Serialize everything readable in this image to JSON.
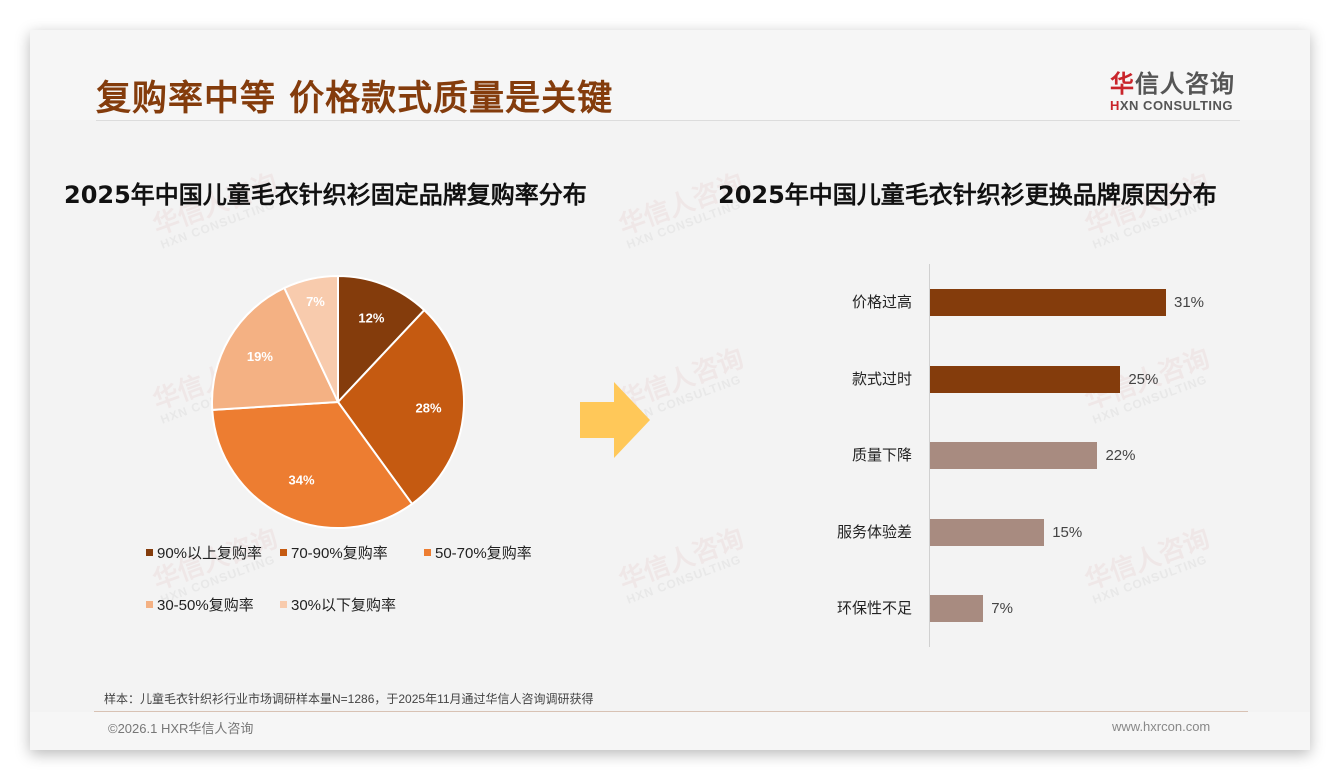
{
  "header": {
    "title": "复购率中等 价格款式质量是关键",
    "logo_cn_first": "华",
    "logo_cn_rest": "信人咨询",
    "logo_en_first": "H",
    "logo_en_rest": "XN CONSULTING"
  },
  "watermark": {
    "cn": "华信人咨询",
    "en": "HXN CONSULTING"
  },
  "left_chart": {
    "title": "2025年中国儿童毛衣针织衫固定品牌复购率分布"
  },
  "right_chart": {
    "title": "2025年中国儿童毛衣针织衫更换品牌原因分布"
  },
  "footer": {
    "note": "样本：儿童毛衣针织衫行业市场调研样本量N=1286，于2025年11月通过华信人咨询调研获得",
    "copyright": "©2026.1 HXR华信人咨询",
    "website": "www.hxrcon.com"
  },
  "colors": {
    "title": "#843c0c",
    "arrow": "#ffc859",
    "bar_dark": "#843c0c",
    "bar_light": "#a88b80"
  },
  "chart_data": [
    {
      "type": "pie",
      "title": "2025年中国儿童毛衣针织衫固定品牌复购率分布",
      "categories": [
        "90%以上复购率",
        "70-90%复购率",
        "50-70%复购率",
        "30-50%复购率",
        "30%以下复购率"
      ],
      "values": [
        12,
        28,
        34,
        19,
        7
      ],
      "labels": [
        "12%",
        "28%",
        "34%",
        "19%",
        "7%"
      ],
      "colors": [
        "#843c0c",
        "#c55a11",
        "#ed7d31",
        "#f4b183",
        "#f8cbad"
      ],
      "legend_position": "bottom"
    },
    {
      "type": "bar",
      "orientation": "horizontal",
      "title": "2025年中国儿童毛衣针织衫更换品牌原因分布",
      "categories": [
        "价格过高",
        "款式过时",
        "质量下降",
        "服务体验差",
        "环保性不足"
      ],
      "values": [
        31,
        25,
        22,
        15,
        7
      ],
      "labels": [
        "31%",
        "25%",
        "22%",
        "15%",
        "7%"
      ],
      "colors": [
        "#843c0c",
        "#843c0c",
        "#a88b80",
        "#a88b80",
        "#a88b80"
      ],
      "xlabel": "",
      "ylabel": "",
      "grid": false,
      "xlim": [
        0,
        35
      ]
    }
  ]
}
